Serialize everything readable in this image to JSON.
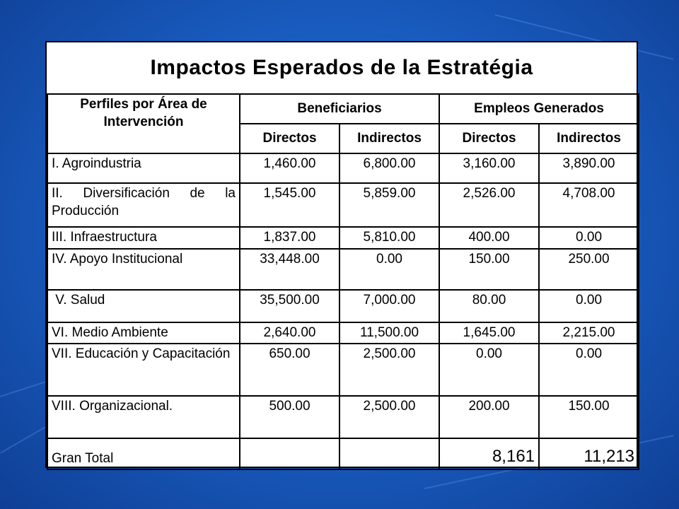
{
  "title": "Impactos Esperados de la Estratégia",
  "header": {
    "profile": "Perfiles por Área de Intervención",
    "group_beneficiarios": "Beneficiarios",
    "group_empleos": "Empleos Generados",
    "sub_directos_1": "Directos",
    "sub_indirectos_1": "Indirectos",
    "sub_directos_2": "Directos",
    "sub_indirectos_2": "Indirectos"
  },
  "rows": [
    {
      "label": "I. Agroindustria",
      "ben_dir": "1,460.00",
      "ben_ind": "6,800.00",
      "emp_dir": "3,160.00",
      "emp_ind": "3,890.00"
    },
    {
      "label": "II. Diversificación de la Producción",
      "ben_dir": "1,545.00",
      "ben_ind": "5,859.00",
      "emp_dir": "2,526.00",
      "emp_ind": "4,708.00"
    },
    {
      "label": "III. Infraestructura",
      "ben_dir": "1,837.00",
      "ben_ind": "5,810.00",
      "emp_dir": "400.00",
      "emp_ind": "0.00"
    },
    {
      "label": "IV. Apoyo Institucional",
      "ben_dir": "33,448.00",
      "ben_ind": "0.00",
      "emp_dir": "150.00",
      "emp_ind": "250.00"
    },
    {
      "label": " V. Salud",
      "ben_dir": "35,500.00",
      "ben_ind": "7,000.00",
      "emp_dir": "80.00",
      "emp_ind": "0.00"
    },
    {
      "label": "VI. Medio Ambiente",
      "ben_dir": "2,640.00",
      "ben_ind": "11,500.00",
      "emp_dir": "1,645.00",
      "emp_ind": "2,215.00"
    },
    {
      "label": "VII. Educación y Capacitación",
      "ben_dir": "650.00",
      "ben_ind": "2,500.00",
      "emp_dir": "0.00",
      "emp_ind": "0.00"
    },
    {
      "label": "VIII. Organizacional.",
      "ben_dir": "500.00",
      "ben_ind": "2,500.00",
      "emp_dir": "200.00",
      "emp_ind": "150.00"
    }
  ],
  "total": {
    "label": "Gran Total",
    "ben_dir": "",
    "ben_ind": "",
    "emp_dir": "8,161",
    "emp_ind": "11,213"
  },
  "colors": {
    "background": "#1a5fc4",
    "card": "#ffffff",
    "text": "#000000"
  }
}
